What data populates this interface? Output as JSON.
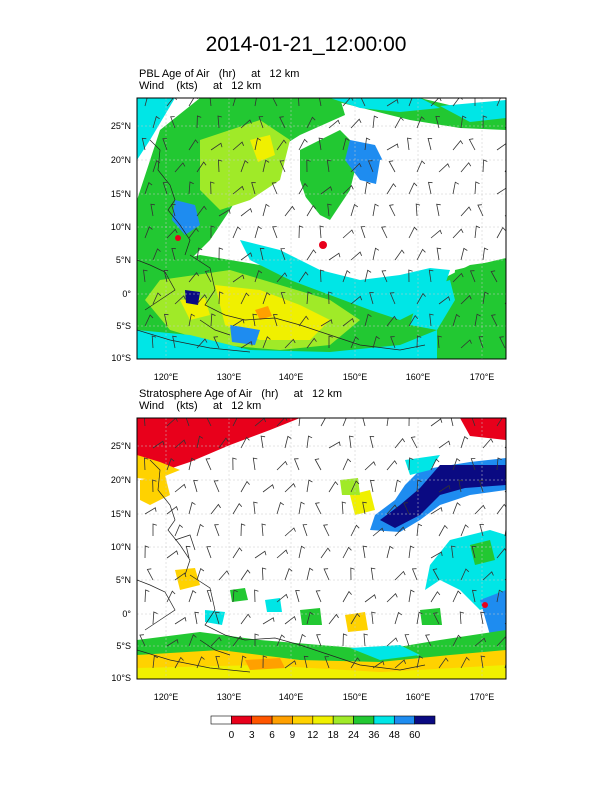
{
  "title": "2014-01-21_12:00:00",
  "panels": [
    {
      "id": "pbl",
      "field_label": "PBL Age of Air   (hr)     at   12 km",
      "wind_label": "Wind    (kts)     at   12 km",
      "lat_ticks": [
        "25°N",
        "20°N",
        "15°N",
        "10°N",
        "5°N",
        "0°",
        "5°S",
        "10°S"
      ],
      "lon_ticks": [
        "120°E",
        "130°E",
        "140°E",
        "150°E",
        "160°E",
        "170°E"
      ]
    },
    {
      "id": "stratosphere",
      "field_label": "Stratosphere Age of Air   (hr)     at   12 km",
      "wind_label": "Wind    (kts)     at   12 km",
      "lat_ticks": [
        "25°N",
        "20°N",
        "15°N",
        "10°N",
        "5°N",
        "0°",
        "5°S",
        "10°S"
      ],
      "lon_ticks": [
        "120°E",
        "130°E",
        "140°E",
        "150°E",
        "160°E",
        "170°E"
      ]
    }
  ],
  "colorbar": {
    "labels": [
      "0",
      "3",
      "6",
      "9",
      "12",
      "18",
      "24",
      "36",
      "48",
      "60"
    ],
    "colors": [
      "#ffffff",
      "#e8001b",
      "#ff5500",
      "#ffa000",
      "#ffd200",
      "#f0f000",
      "#a0ea28",
      "#22c832",
      "#00e6e6",
      "#1e8cf0",
      "#0a0a82"
    ]
  },
  "map_extent": {
    "lon": [
      116,
      173
    ],
    "lat": [
      -10,
      29
    ]
  }
}
